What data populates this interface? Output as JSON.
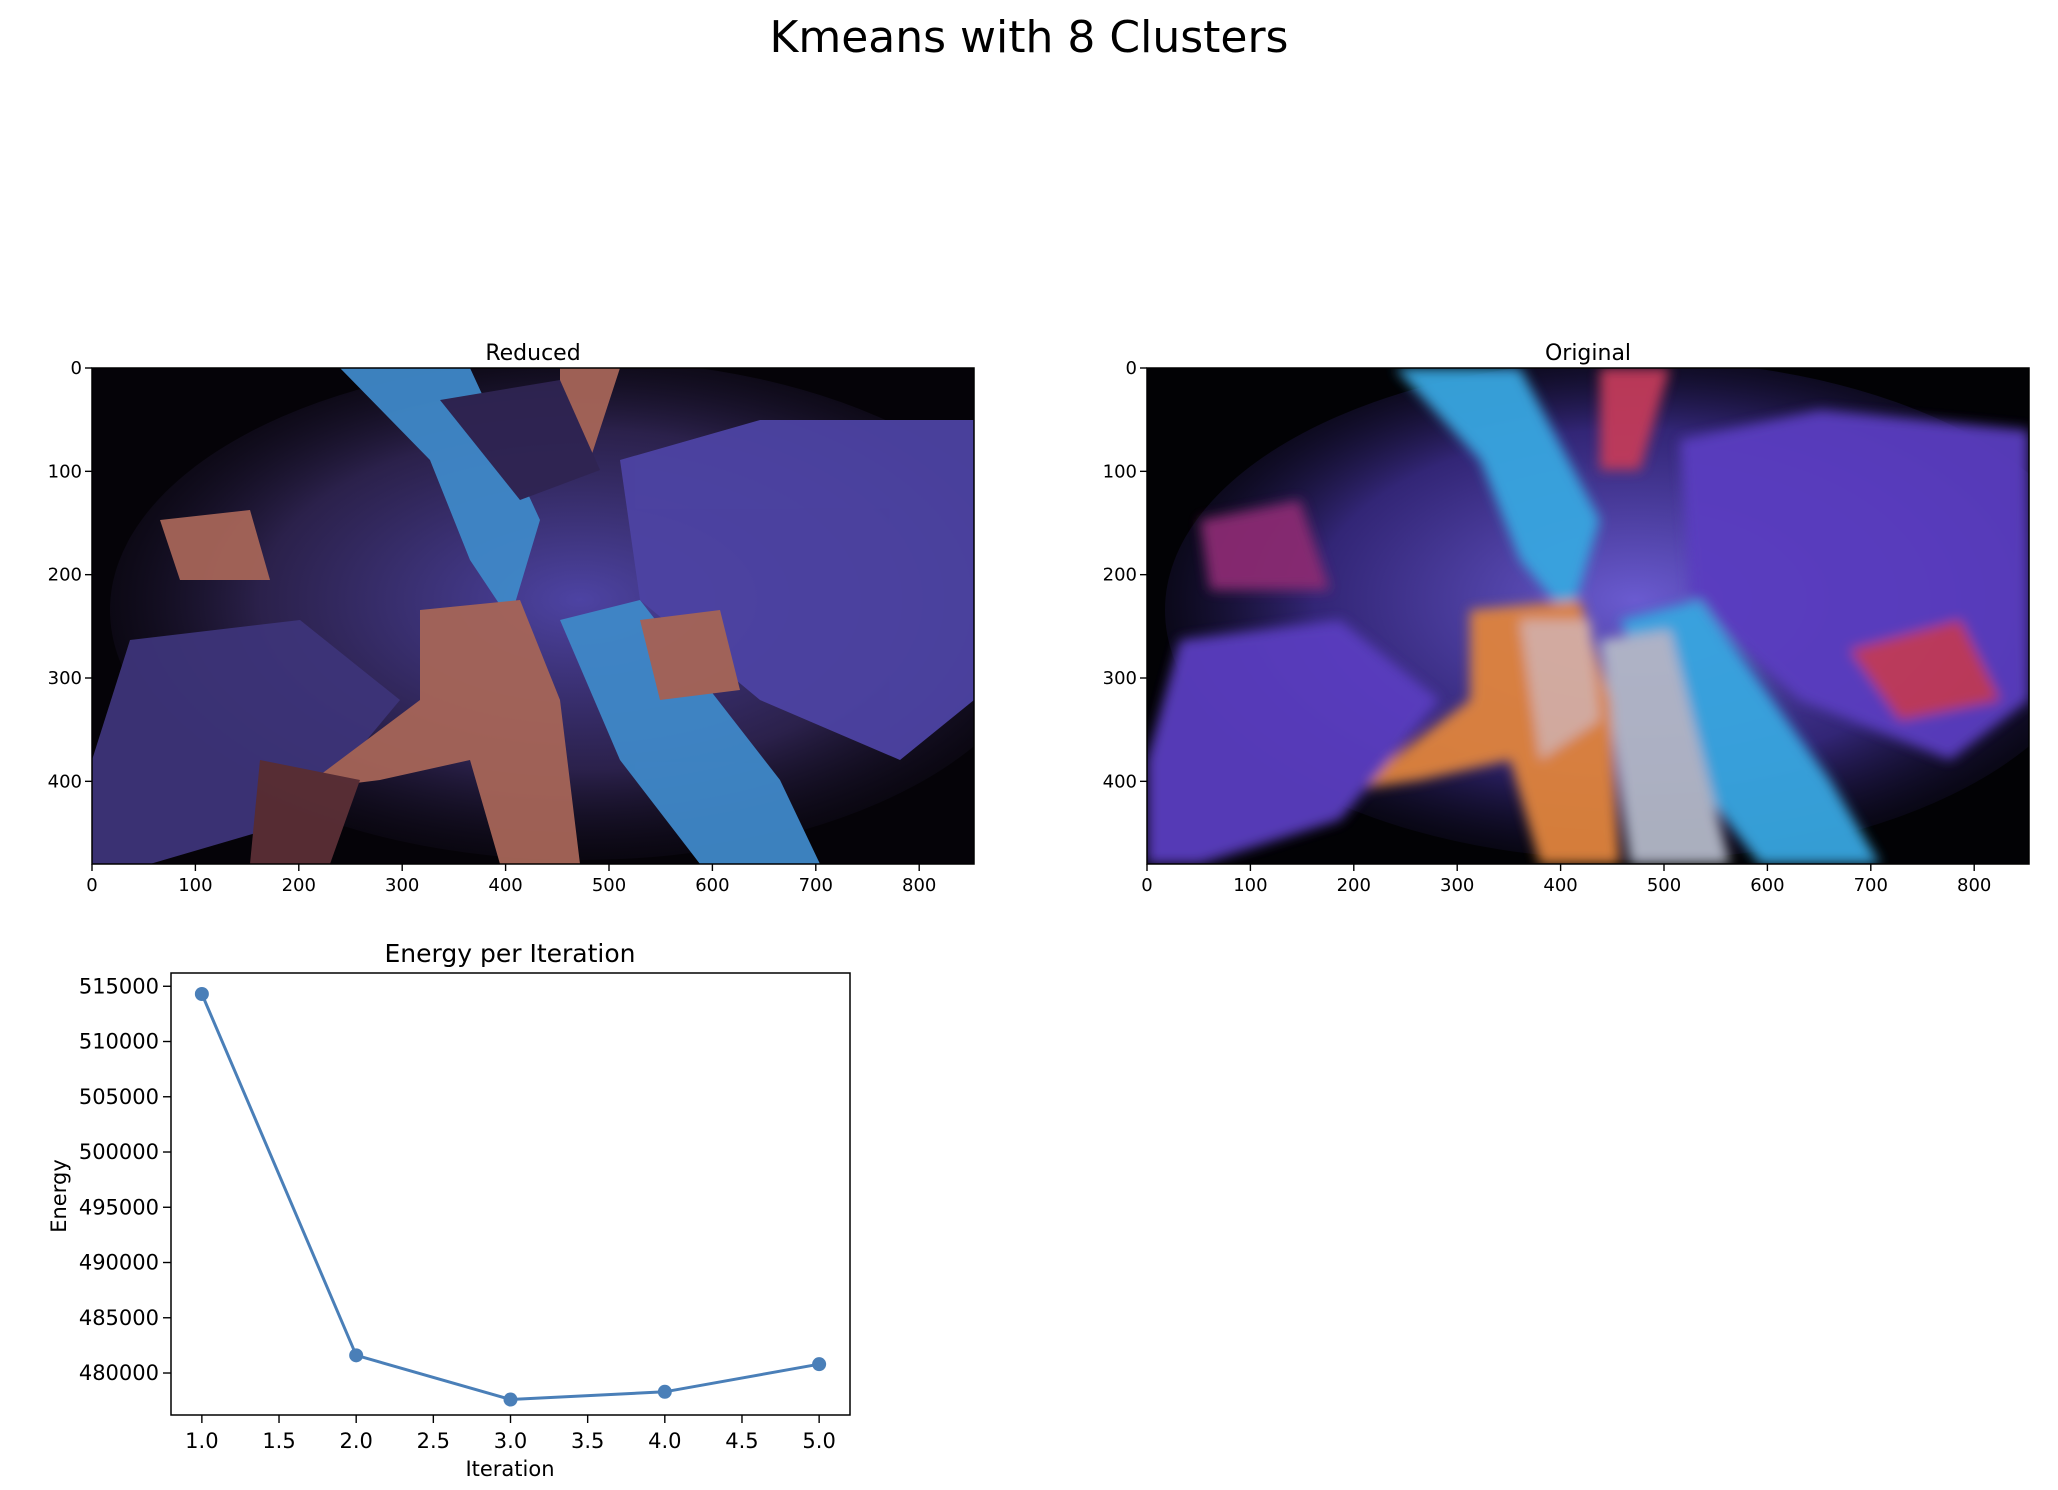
{
  "figure": {
    "suptitle": "Kmeans with 8 Clusters"
  },
  "images": [
    {
      "title": "Reduced",
      "xticks": [
        "0",
        "100",
        "200",
        "300",
        "400",
        "500",
        "600",
        "700",
        "800"
      ],
      "yticks": [
        "0",
        "100",
        "200",
        "300",
        "400"
      ],
      "xlim": [
        0,
        853
      ],
      "ylim": [
        480,
        0
      ],
      "palette": [
        "#050308",
        "#1a1226",
        "#2f2452",
        "#3d3479",
        "#4d43a3",
        "#3f88c8",
        "#a66558",
        "#5b2f36"
      ]
    },
    {
      "title": "Original",
      "xticks": [
        "0",
        "100",
        "200",
        "300",
        "400",
        "500",
        "600",
        "700",
        "800"
      ],
      "yticks": [
        "0",
        "100",
        "200",
        "300",
        "400"
      ],
      "xlim": [
        0,
        853
      ],
      "ylim": [
        480,
        0
      ],
      "palette": [
        "#020205",
        "#8a2c72",
        "#5a3cc0",
        "#39a6e0",
        "#e0843c",
        "#d9b0a0",
        "#b3b8c7",
        "#c23a5a"
      ]
    }
  ],
  "chart_data": {
    "type": "line",
    "title": "Energy per Iteration",
    "xlabel": "Iteration",
    "ylabel": "Energy",
    "x": [
      1.0,
      2.0,
      3.0,
      4.0,
      5.0
    ],
    "series": [
      {
        "values": [
          514300,
          481600,
          477600,
          478300,
          480800
        ]
      }
    ],
    "xlim": [
      0.8,
      5.2
    ],
    "ylim": [
      476200,
      516200
    ],
    "xticks": [
      "1.0",
      "1.5",
      "2.0",
      "2.5",
      "3.0",
      "3.5",
      "4.0",
      "4.5",
      "5.0"
    ],
    "yticks": [
      "480000",
      "485000",
      "490000",
      "495000",
      "500000",
      "505000",
      "510000",
      "515000"
    ],
    "grid": false,
    "line_color": "#4a7fb8",
    "marker": "circle"
  }
}
